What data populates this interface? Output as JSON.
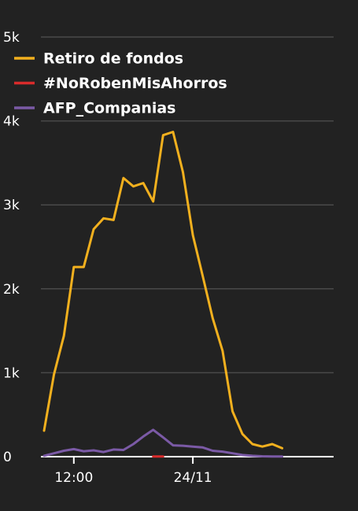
{
  "chart_data": {
    "type": "line",
    "title": "",
    "xlabel": "",
    "ylabel": "",
    "ylim": [
      0,
      5000
    ],
    "y_ticks": [
      {
        "value": 0,
        "label": "0"
      },
      {
        "value": 1000,
        "label": "1k"
      },
      {
        "value": 2000,
        "label": "2k"
      },
      {
        "value": 3000,
        "label": "3k"
      },
      {
        "value": 4000,
        "label": "4k"
      },
      {
        "value": 5000,
        "label": "5k"
      }
    ],
    "x_ticks": [
      {
        "index": 3,
        "label": "12:00"
      },
      {
        "index": 15,
        "label": "24/11"
      }
    ],
    "grid": true,
    "legend_position": "top-left",
    "point_count": 30,
    "series": [
      {
        "name": "Retiro de fondos",
        "color": "#f2b01e",
        "values": [
          310,
          980,
          1440,
          2260,
          2260,
          2710,
          2840,
          2820,
          3320,
          3220,
          3260,
          3040,
          3830,
          3870,
          3390,
          2640,
          2150,
          1650,
          1260,
          540,
          270,
          150,
          120,
          150,
          100,
          null,
          null,
          null,
          null,
          null
        ]
      },
      {
        "name": "#NoRobenMisAhorros",
        "color": "#d92b2b",
        "values": [
          null,
          null,
          null,
          null,
          null,
          null,
          null,
          null,
          null,
          null,
          null,
          2,
          2,
          null,
          null,
          null,
          null,
          null,
          null,
          null,
          null,
          null,
          null,
          null,
          null,
          null,
          null,
          null,
          null,
          null
        ]
      },
      {
        "name": "AFP_Companias",
        "color": "#7b5aa6",
        "values": [
          10,
          40,
          70,
          90,
          65,
          75,
          55,
          85,
          80,
          150,
          240,
          320,
          230,
          135,
          130,
          120,
          110,
          70,
          60,
          40,
          20,
          10,
          5,
          3,
          2,
          null,
          null,
          null,
          null,
          null
        ]
      }
    ]
  }
}
